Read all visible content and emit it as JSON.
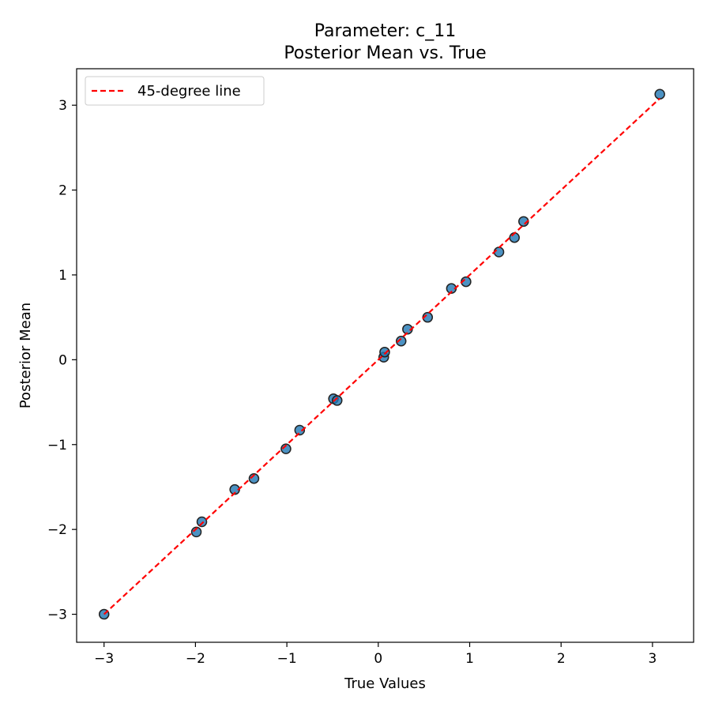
{
  "chart_data": {
    "type": "scatter",
    "title": "Parameter: c_11",
    "subtitle": "Posterior Mean vs. True",
    "xlabel": "True Values",
    "ylabel": "Posterior Mean",
    "xlim": [
      -3.3,
      3.45
    ],
    "ylim": [
      -3.33,
      3.43
    ],
    "xticks": [
      -3,
      -2,
      -1,
      0,
      1,
      2,
      3
    ],
    "yticks": [
      -3,
      -2,
      -1,
      0,
      1,
      2,
      3
    ],
    "xtick_labels": [
      "−3",
      "−2",
      "−1",
      "0",
      "1",
      "2",
      "3"
    ],
    "ytick_labels": [
      "−3",
      "−2",
      "−1",
      "0",
      "1",
      "2",
      "3"
    ],
    "grid": false,
    "legend_position": "top-left",
    "series": [
      {
        "type": "scatter",
        "color": "#1f77b4",
        "edge_color": "#222222",
        "points": [
          {
            "x": -3.0,
            "y": -3.0
          },
          {
            "x": -1.99,
            "y": -2.03
          },
          {
            "x": -1.93,
            "y": -1.91
          },
          {
            "x": -1.57,
            "y": -1.53
          },
          {
            "x": -1.36,
            "y": -1.4
          },
          {
            "x": -1.01,
            "y": -1.05
          },
          {
            "x": -0.86,
            "y": -0.83
          },
          {
            "x": -0.49,
            "y": -0.46
          },
          {
            "x": -0.45,
            "y": -0.48
          },
          {
            "x": 0.06,
            "y": 0.03
          },
          {
            "x": 0.07,
            "y": 0.09
          },
          {
            "x": 0.25,
            "y": 0.22
          },
          {
            "x": 0.32,
            "y": 0.36
          },
          {
            "x": 0.54,
            "y": 0.5
          },
          {
            "x": 0.8,
            "y": 0.84
          },
          {
            "x": 0.96,
            "y": 0.92
          },
          {
            "x": 1.32,
            "y": 1.27
          },
          {
            "x": 1.49,
            "y": 1.44
          },
          {
            "x": 1.59,
            "y": 1.63
          },
          {
            "x": 3.08,
            "y": 3.13
          }
        ]
      },
      {
        "type": "line",
        "name": "45-degree line",
        "color": "#ff0000",
        "dash": "dashed",
        "x": [
          -3.0,
          3.08
        ],
        "y": [
          -3.0,
          3.08
        ]
      }
    ],
    "legend": {
      "entries": [
        "45-degree line"
      ]
    }
  }
}
